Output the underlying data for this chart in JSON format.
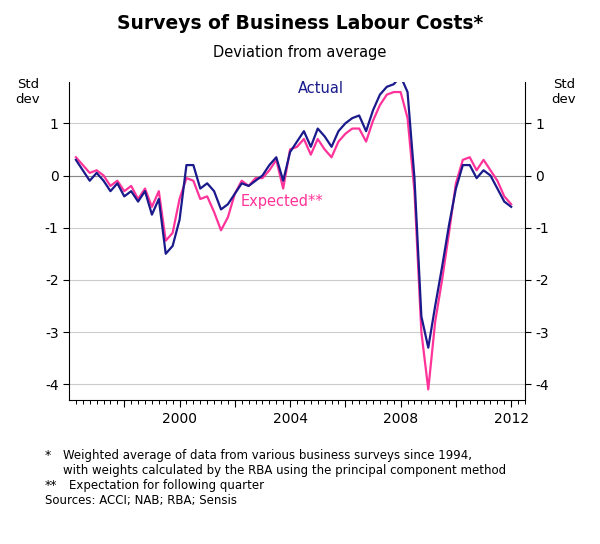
{
  "title": "Surveys of Business Labour Costs*",
  "subtitle": "Deviation from average",
  "ylabel_left": "Std\ndev",
  "ylabel_right": "Std\ndev",
  "ylim": [
    -4.3,
    1.8
  ],
  "yticks": [
    -4,
    -3,
    -2,
    -1,
    0,
    1
  ],
  "actual_color": "#1a1a8c",
  "expected_color": "#ff3399",
  "actual_label": "Actual",
  "expected_label": "Expected**",
  "footnote1_a": "*",
  "footnote1_b": "Weighted average of data from various business surveys since 1994,",
  "footnote1_c": "with weights calculated by the RBA using the principal component method",
  "footnote2_a": "**",
  "footnote2_b": "Expectation for following quarter",
  "footnote3": "Sources: ACCI; NAB; RBA; Sensis",
  "actual_x": [
    1996.25,
    1996.5,
    1996.75,
    1997.0,
    1997.25,
    1997.5,
    1997.75,
    1998.0,
    1998.25,
    1998.5,
    1998.75,
    1999.0,
    1999.25,
    1999.5,
    1999.75,
    2000.0,
    2000.25,
    2000.5,
    2000.75,
    2001.0,
    2001.25,
    2001.5,
    2001.75,
    2002.0,
    2002.25,
    2002.5,
    2002.75,
    2003.0,
    2003.25,
    2003.5,
    2003.75,
    2004.0,
    2004.25,
    2004.5,
    2004.75,
    2005.0,
    2005.25,
    2005.5,
    2005.75,
    2006.0,
    2006.25,
    2006.5,
    2006.75,
    2007.0,
    2007.25,
    2007.5,
    2007.75,
    2008.0,
    2008.25,
    2008.5,
    2008.75,
    2009.0,
    2009.25,
    2009.5,
    2009.75,
    2010.0,
    2010.25,
    2010.5,
    2010.75,
    2011.0,
    2011.25,
    2011.5,
    2011.75,
    2012.0
  ],
  "actual_y": [
    0.3,
    0.1,
    -0.1,
    0.05,
    -0.1,
    -0.3,
    -0.15,
    -0.4,
    -0.3,
    -0.5,
    -0.3,
    -0.75,
    -0.45,
    -1.5,
    -1.35,
    -0.85,
    0.2,
    0.2,
    -0.25,
    -0.15,
    -0.3,
    -0.65,
    -0.55,
    -0.35,
    -0.15,
    -0.2,
    -0.1,
    0.0,
    0.2,
    0.35,
    -0.1,
    0.45,
    0.65,
    0.85,
    0.55,
    0.9,
    0.75,
    0.55,
    0.85,
    1.0,
    1.1,
    1.15,
    0.85,
    1.25,
    1.55,
    1.7,
    1.75,
    1.9,
    1.6,
    -0.05,
    -2.7,
    -3.3,
    -2.5,
    -1.75,
    -0.95,
    -0.25,
    0.2,
    0.2,
    -0.05,
    0.1,
    0.0,
    -0.25,
    -0.5,
    -0.6
  ],
  "expected_x": [
    1996.25,
    1996.5,
    1996.75,
    1997.0,
    1997.25,
    1997.5,
    1997.75,
    1998.0,
    1998.25,
    1998.5,
    1998.75,
    1999.0,
    1999.25,
    1999.5,
    1999.75,
    2000.0,
    2000.25,
    2000.5,
    2000.75,
    2001.0,
    2001.25,
    2001.5,
    2001.75,
    2002.0,
    2002.25,
    2002.5,
    2002.75,
    2003.0,
    2003.25,
    2003.5,
    2003.75,
    2004.0,
    2004.25,
    2004.5,
    2004.75,
    2005.0,
    2005.25,
    2005.5,
    2005.75,
    2006.0,
    2006.25,
    2006.5,
    2006.75,
    2007.0,
    2007.25,
    2007.5,
    2007.75,
    2008.0,
    2008.25,
    2008.5,
    2008.75,
    2009.0,
    2009.25,
    2009.5,
    2009.75,
    2010.0,
    2010.25,
    2010.5,
    2010.75,
    2011.0,
    2011.25,
    2011.5,
    2011.75,
    2012.0
  ],
  "expected_y": [
    0.35,
    0.2,
    0.05,
    0.1,
    0.0,
    -0.2,
    -0.1,
    -0.3,
    -0.2,
    -0.45,
    -0.25,
    -0.6,
    -0.3,
    -1.25,
    -1.1,
    -0.45,
    -0.05,
    -0.1,
    -0.45,
    -0.4,
    -0.7,
    -1.05,
    -0.8,
    -0.35,
    -0.1,
    -0.2,
    -0.05,
    -0.05,
    0.1,
    0.3,
    -0.25,
    0.5,
    0.55,
    0.7,
    0.4,
    0.7,
    0.5,
    0.35,
    0.65,
    0.8,
    0.9,
    0.9,
    0.65,
    1.05,
    1.35,
    1.55,
    1.6,
    1.6,
    1.1,
    -0.3,
    -3.0,
    -4.1,
    -2.8,
    -2.0,
    -1.1,
    -0.15,
    0.3,
    0.35,
    0.1,
    0.3,
    0.1,
    -0.1,
    -0.4,
    -0.55
  ]
}
